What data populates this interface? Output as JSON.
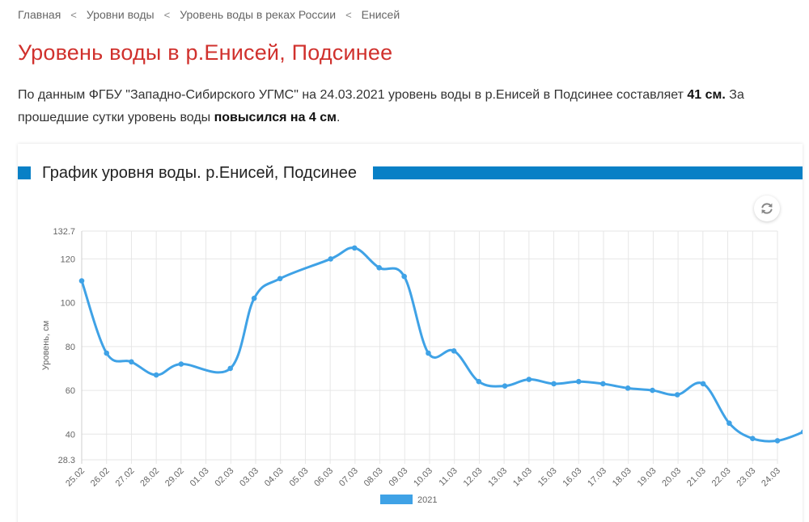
{
  "breadcrumb": {
    "items": [
      "Главная",
      "Уровни воды",
      "Уровень воды в реках России",
      "Енисей"
    ],
    "separator": "<"
  },
  "page_title": "Уровень воды в р.Енисей, Подсинее",
  "lead": {
    "part1": "По данным ФГБУ \"Западно-Сибирского УГМС\" на 24.03.2021 уровень воды в р.Енисей в Подсинее составляет ",
    "level": "41 см.",
    "part2": " За прошедшие сутки уровень воды ",
    "change": "повысился на 4 см",
    "part3": "."
  },
  "chart_header": {
    "title": "График уровня воды. р.Енисей, Подсинее"
  },
  "colors": {
    "accent": "#0880c6",
    "title": "#d0312d",
    "series": "#3fa2e6"
  },
  "icons": {
    "refresh": "refresh-icon"
  },
  "chart_data": {
    "type": "line",
    "title": "",
    "xlabel": "",
    "ylabel": "Уровень, см",
    "ylim": [
      28.3,
      132.7
    ],
    "yticks": [
      28.3,
      40,
      60,
      80,
      100,
      120,
      132.7
    ],
    "yticklabels": [
      "28.3",
      "40",
      "60",
      "80",
      "100",
      "120",
      "132.7"
    ],
    "categories": [
      "25.02",
      "26.02",
      "27.02",
      "28.02",
      "29.02",
      "01.03",
      "02.03",
      "03.03",
      "04.03",
      "05.03",
      "06.03",
      "07.03",
      "08.03",
      "09.03",
      "10.03",
      "11.03",
      "12.03",
      "13.03",
      "14.03",
      "15.03",
      "16.03",
      "17.03",
      "18.03",
      "19.03",
      "20.03",
      "21.03",
      "22.03",
      "23.03",
      "24.03"
    ],
    "x": [
      0,
      1,
      2,
      3,
      4,
      5.98,
      6.94,
      7.98,
      10.02,
      10.98,
      11.97,
      12.98,
      13.95,
      14.98,
      15.98,
      17.03,
      18,
      19,
      20,
      20.98,
      21.98,
      22.97,
      23.97,
      25.01,
      26.06,
      27,
      28,
      29.05
    ],
    "grid": true,
    "legend": "bottom",
    "series": [
      {
        "name": "2021",
        "values": [
          110,
          77,
          73,
          67,
          72,
          70,
          102,
          111,
          120,
          125,
          116,
          112,
          77,
          78,
          64,
          62,
          65,
          63,
          64,
          63,
          61,
          60,
          58,
          63,
          45,
          38,
          37,
          41
        ]
      }
    ]
  }
}
